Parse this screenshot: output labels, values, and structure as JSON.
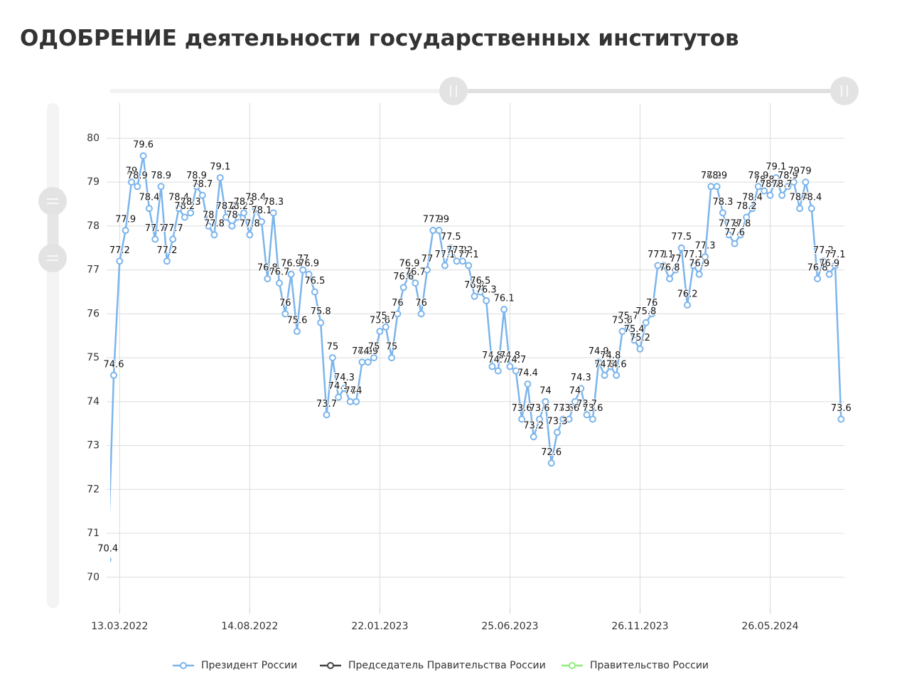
{
  "chart_data": {
    "type": "line",
    "title": "ОДОБРЕНИЕ деятельности государственных институтов",
    "categories": [
      null,
      null,
      "13.03.2022",
      null,
      null,
      null,
      null,
      null,
      null,
      null,
      null,
      null,
      null,
      null,
      null,
      null,
      null,
      null,
      null,
      null,
      null,
      null,
      null,
      null,
      "14.08.2022",
      null,
      null,
      null,
      null,
      null,
      null,
      null,
      null,
      null,
      null,
      null,
      null,
      null,
      null,
      null,
      null,
      null,
      null,
      null,
      null,
      null,
      "22.01.2023",
      null,
      null,
      null,
      null,
      null,
      null,
      null,
      null,
      null,
      null,
      null,
      null,
      null,
      null,
      null,
      null,
      null,
      null,
      null,
      null,
      null,
      "25.06.2023",
      null,
      null,
      null,
      null,
      null,
      null,
      null,
      null,
      null,
      null,
      null,
      null,
      null,
      null,
      null,
      null,
      null,
      null,
      null,
      null,
      null,
      "26.11.2023",
      null,
      null,
      null,
      null,
      null,
      null,
      null,
      null,
      null,
      null,
      null,
      null,
      null,
      null,
      null,
      null,
      null,
      null,
      null,
      null,
      null,
      "26.05.2024",
      null,
      null,
      null,
      null,
      null,
      null,
      null,
      null,
      null,
      null,
      null,
      null
    ],
    "series": [
      {
        "name": "Президент России",
        "color": "#7cb5ec",
        "values": [
          70.4,
          74.6,
          77.2,
          77.9,
          79,
          78.9,
          79.6,
          78.4,
          77.7,
          78.9,
          77.2,
          77.7,
          78.4,
          78.2,
          78.3,
          78.9,
          78.7,
          78,
          77.8,
          79.1,
          78.2,
          78,
          78.2,
          78.3,
          77.8,
          78.4,
          78.1,
          76.8,
          78.3,
          76.7,
          76,
          76.9,
          75.6,
          77,
          76.9,
          76.5,
          75.8,
          73.7,
          75,
          74.1,
          74.3,
          74,
          74,
          74.9,
          74.9,
          75,
          75.6,
          75.7,
          75,
          76,
          76.6,
          76.9,
          76.7,
          76,
          77,
          77.9,
          77.9,
          77.1,
          77.5,
          77.2,
          77.2,
          77.1,
          76.4,
          76.5,
          76.3,
          74.8,
          74.7,
          76.1,
          74.8,
          74.7,
          73.6,
          74.4,
          73.2,
          73.6,
          74,
          72.6,
          73.3,
          73.6,
          73.6,
          74,
          74.3,
          73.7,
          73.6,
          74.9,
          74.6,
          74.8,
          74.6,
          75.6,
          75.7,
          75.4,
          75.2,
          75.8,
          76,
          77.1,
          77.1,
          76.8,
          77,
          77.5,
          76.2,
          77.1,
          76.9,
          77.3,
          78.9,
          78.9,
          78.3,
          77.8,
          77.6,
          77.8,
          78.2,
          78.4,
          78.9,
          78.8,
          78.7,
          79.1,
          78.7,
          78.9,
          79,
          78.4,
          79,
          78.4,
          76.8,
          77.2,
          76.9,
          77.1,
          73.6
        ]
      }
    ],
    "legend": [
      {
        "name": "Президент России",
        "color": "#7cb5ec"
      },
      {
        "name": "Председатель Правительства России",
        "color": "#434348"
      },
      {
        "name": "Правительство России",
        "color": "#90ed7d"
      }
    ],
    "ylim": [
      69.3,
      80.8
    ],
    "yticks": [
      70,
      71,
      72,
      73,
      74,
      75,
      76,
      77,
      78,
      79,
      80
    ],
    "grid": true
  }
}
